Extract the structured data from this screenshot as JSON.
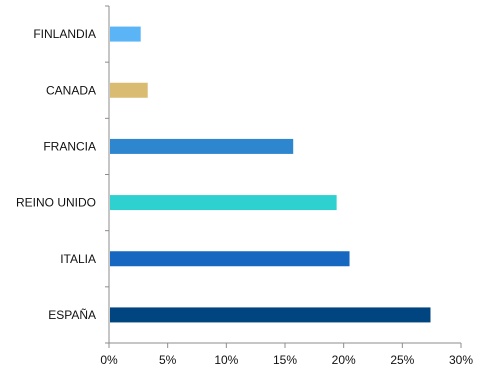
{
  "chart_data": {
    "type": "bar",
    "orientation": "horizontal",
    "title": "",
    "xlabel": "",
    "ylabel": "",
    "xlim": [
      0,
      30
    ],
    "x_ticks": [
      "0%",
      "5%",
      "10%",
      "15%",
      "20%",
      "25%",
      "30%"
    ],
    "grid": false,
    "legend": "none",
    "categories": [
      "FINLANDIA",
      "CANADA",
      "FRANCIA",
      "REINO UNIDO",
      "ITALIA",
      "ESPAÑA"
    ],
    "values": [
      2.7,
      3.3,
      15.7,
      19.4,
      20.5,
      27.4
    ],
    "colors": [
      "#5ab4f5",
      "#d9bb72",
      "#2e86cf",
      "#2ed0d0",
      "#1567c0",
      "#00457f"
    ]
  }
}
